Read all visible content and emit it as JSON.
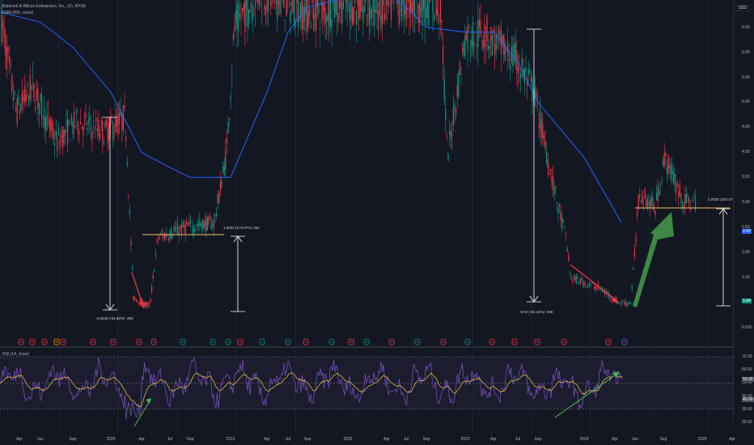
{
  "symbol": {
    "title": "Babcock & Wilcox Enterprises, Inc., 1D, NYSE",
    "indicator": "EMA (200, close)",
    "currency": "USD"
  },
  "price_axis": {
    "labels": [
      "6.50",
      "6.00",
      "5.50",
      "5.00",
      "4.50",
      "4.00",
      "3.50",
      "3.00",
      "2.50",
      "2.00",
      "1.50",
      "1.00",
      "0.500"
    ],
    "last_price_tag": "1.04",
    "ema_tag": "2.42",
    "last_price_color": "#089981",
    "ema_color": "#2962ff"
  },
  "rsi": {
    "title": "RSI (14, close)",
    "axis_labels": [
      "70.00",
      "60.00",
      "50.00",
      "40.00",
      "30.00",
      "20.00"
    ],
    "value_tags": [
      "50.00",
      "40.00"
    ]
  },
  "time_axis": {
    "labels": [
      "Apr",
      "Jun",
      "Sep",
      "2020",
      "Apr",
      "Jul",
      "Sep",
      "2021",
      "Apr",
      "Jul",
      "Sep",
      "2022",
      "Apr",
      "Jul",
      "Sep",
      "2023",
      "Apr",
      "Jul",
      "Sep",
      "2024",
      "Apr",
      "Jun",
      "Sep",
      "2025",
      "Apr"
    ]
  },
  "annotations": {
    "measure1": "-3.9236 (-81.98%) -393",
    "measure2": "1.5032 (173.97%) 152",
    "measure3": "-5.60 (-84.42%) -560",
    "measure4": "2.0030 (204.47%) 200"
  },
  "colors": {
    "background": "#131722",
    "up": "#089981",
    "down": "#f23645",
    "ema": "#2962ff",
    "rsi": "#7e57c2",
    "rsi_ma": "#f7c948",
    "annotation": "#ffffff",
    "level": "#f5c26b",
    "arrow_red": "#f23645",
    "arrow_green": "#4caf50"
  },
  "chart_data": {
    "type": "line",
    "title": "Babcock & Wilcox Enterprises, Inc., 1D, NYSE",
    "xlabel": "",
    "ylabel": "",
    "ylim": [
      0.4,
      6.9
    ],
    "series": [
      {
        "name": "EMA (200, close)",
        "x": [
          "2019-04",
          "2019-06",
          "2019-09",
          "2020-01",
          "2020-04",
          "2020-07",
          "2020-09",
          "2021-01",
          "2021-04",
          "2021-07",
          "2021-09",
          "2022-01",
          "2022-04",
          "2022-07",
          "2022-09",
          "2023-01",
          "2023-04",
          "2023-07",
          "2023-09",
          "2024-01",
          "2024-04"
        ],
        "values": [
          6.8,
          6.6,
          6.1,
          5.2,
          4.0,
          3.7,
          3.5,
          3.5,
          5.2,
          6.4,
          6.9,
          7.1,
          7.2,
          6.9,
          6.5,
          6.4,
          6.4,
          5.8,
          5.0,
          3.9,
          2.6
        ]
      }
    ]
  }
}
